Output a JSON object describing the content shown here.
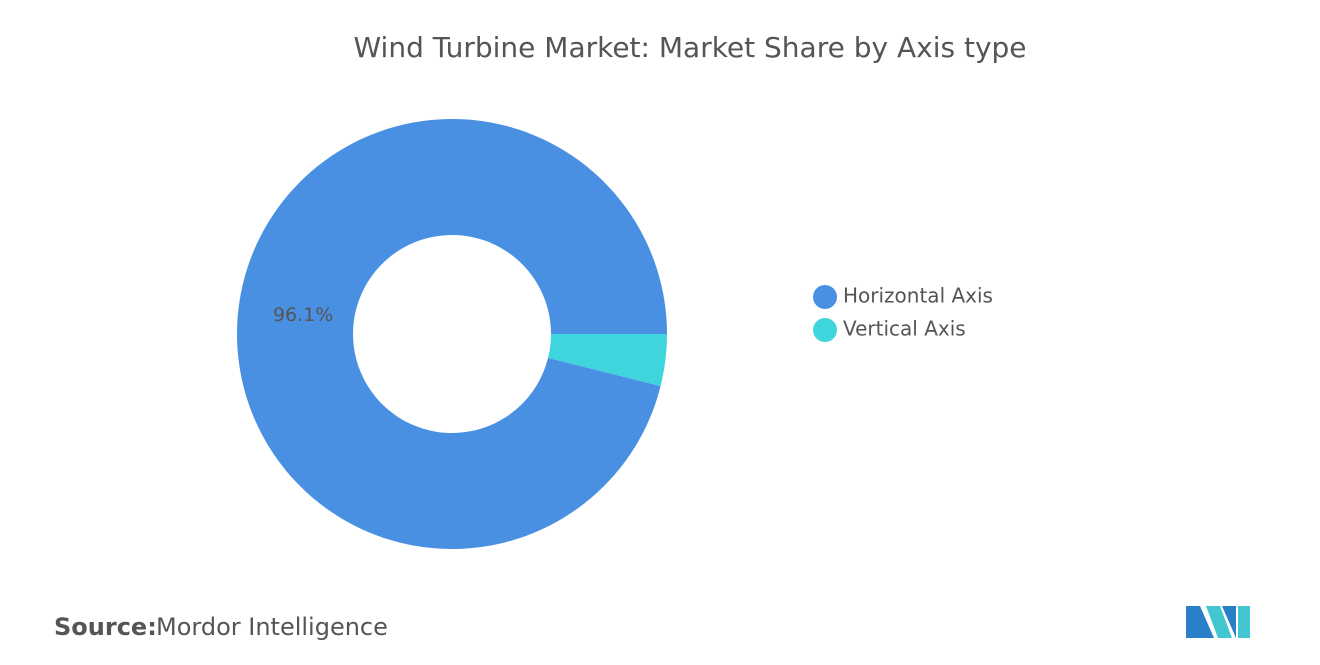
{
  "chart_data": {
    "type": "donut",
    "title": "Wind Turbine Market: Market Share by Axis type",
    "categories": [
      "Horizontal Axis",
      "Vertical Axis"
    ],
    "values": [
      96.1,
      3.9
    ],
    "value_labels": [
      "96.1%",
      null
    ],
    "colors": [
      "#4a90e2",
      "#3fd5dd"
    ],
    "legend": "right",
    "source_label": "Source:",
    "source": "Mordor Intelligence"
  }
}
